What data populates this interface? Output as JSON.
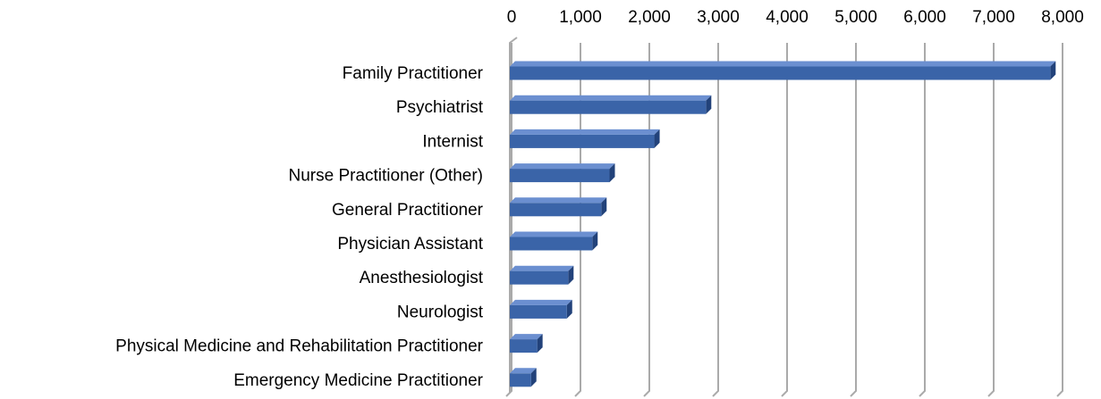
{
  "chart_data": {
    "type": "bar",
    "orientation": "horizontal",
    "categories": [
      "Family Practitioner",
      "Psychiatrist",
      "Internist",
      "Nurse Practitioner (Other)",
      "General Practitioner",
      "Physician Assistant",
      "Anesthesiologist",
      "Neurologist",
      "Physical Medicine and Rehabilitation Practitioner",
      "Emergency Medicine Practitioner"
    ],
    "values": [
      7900,
      2900,
      2150,
      1500,
      1380,
      1250,
      900,
      880,
      450,
      360
    ],
    "color": "#3a64a8",
    "xlim": [
      0,
      8000
    ],
    "xticks": [
      0,
      {
        "value": 1000,
        "label": "1,000"
      },
      {
        "value": 2000,
        "label": "2,000"
      },
      {
        "value": 3000,
        "label": "3,000"
      },
      {
        "value": 4000,
        "label": "4,000"
      },
      {
        "value": 5000,
        "label": "5,000"
      },
      {
        "value": 6000,
        "label": "6,000"
      },
      {
        "value": 7000,
        "label": "7,000"
      },
      {
        "value": 8000,
        "label": "8,000"
      }
    ],
    "grid": true
  }
}
